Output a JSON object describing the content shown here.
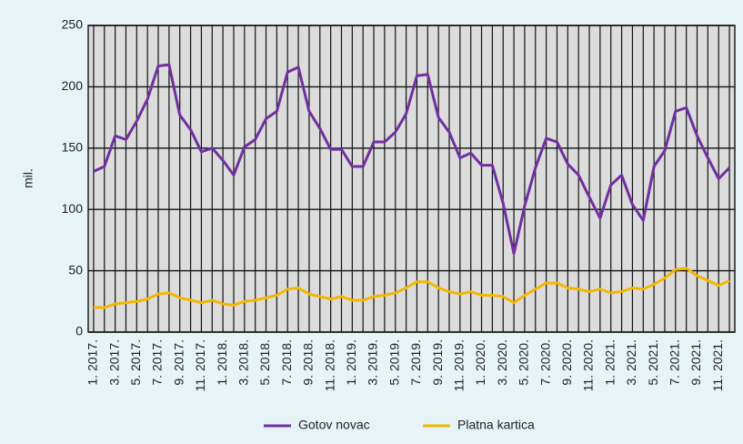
{
  "chart_data": {
    "type": "line",
    "y_label": "mil.",
    "categories": [
      "1. 2017.",
      null,
      "3. 2017.",
      null,
      "5. 2017.",
      null,
      "7. 2017.",
      null,
      "9. 2017.",
      null,
      "11. 2017.",
      null,
      "1. 2018.",
      null,
      "3. 2018.",
      null,
      "5. 2018.",
      null,
      "7. 2018.",
      null,
      "9. 2018.",
      null,
      "11. 2018.",
      null,
      "1. 2019.",
      null,
      "3. 2019.",
      null,
      "5. 2019.",
      null,
      "7. 2019.",
      null,
      "9. 2019.",
      null,
      "11. 2019.",
      null,
      "1. 2020.",
      null,
      "3. 2020.",
      null,
      "5. 2020.",
      null,
      "7. 2020.",
      null,
      "9. 2020.",
      null,
      "11. 2020.",
      null,
      "1. 2021.",
      null,
      "3. 2021.",
      null,
      "5. 2021.",
      null,
      "7. 2021.",
      null,
      "9. 2021.",
      null,
      "11. 2021.",
      null
    ],
    "series": [
      {
        "name": "Gotov novac",
        "color": "#7030a0",
        "values": [
          131,
          135,
          160,
          157,
          172,
          190,
          217,
          218,
          177,
          165,
          147,
          150,
          140,
          128,
          151,
          157,
          174,
          180,
          212,
          216,
          180,
          166,
          149,
          149,
          135,
          135,
          155,
          155,
          163,
          178,
          209,
          210,
          175,
          163,
          142,
          146,
          136,
          136,
          105,
          64,
          103,
          134,
          158,
          155,
          137,
          128,
          110,
          93,
          120,
          128,
          104,
          91,
          135,
          148,
          180,
          183,
          160,
          142,
          125,
          134
        ]
      },
      {
        "name": "Platna kartica",
        "color": "#f5b800",
        "values": [
          20,
          20,
          23,
          24,
          25,
          27,
          31,
          32,
          28,
          26,
          24,
          26,
          23,
          22,
          25,
          26,
          28,
          30,
          35,
          36,
          31,
          29,
          27,
          29,
          26,
          26,
          29,
          30,
          32,
          36,
          41,
          41,
          36,
          33,
          31,
          33,
          30,
          30,
          29,
          24,
          30,
          35,
          40,
          40,
          36,
          35,
          33,
          35,
          32,
          33,
          36,
          35,
          39,
          44,
          51,
          52,
          46,
          42,
          38,
          42
        ]
      }
    ],
    "ylim": [
      0,
      250
    ],
    "yticks": [
      0,
      50,
      100,
      150,
      200,
      250
    ],
    "grid": true,
    "legend": "bottom"
  }
}
